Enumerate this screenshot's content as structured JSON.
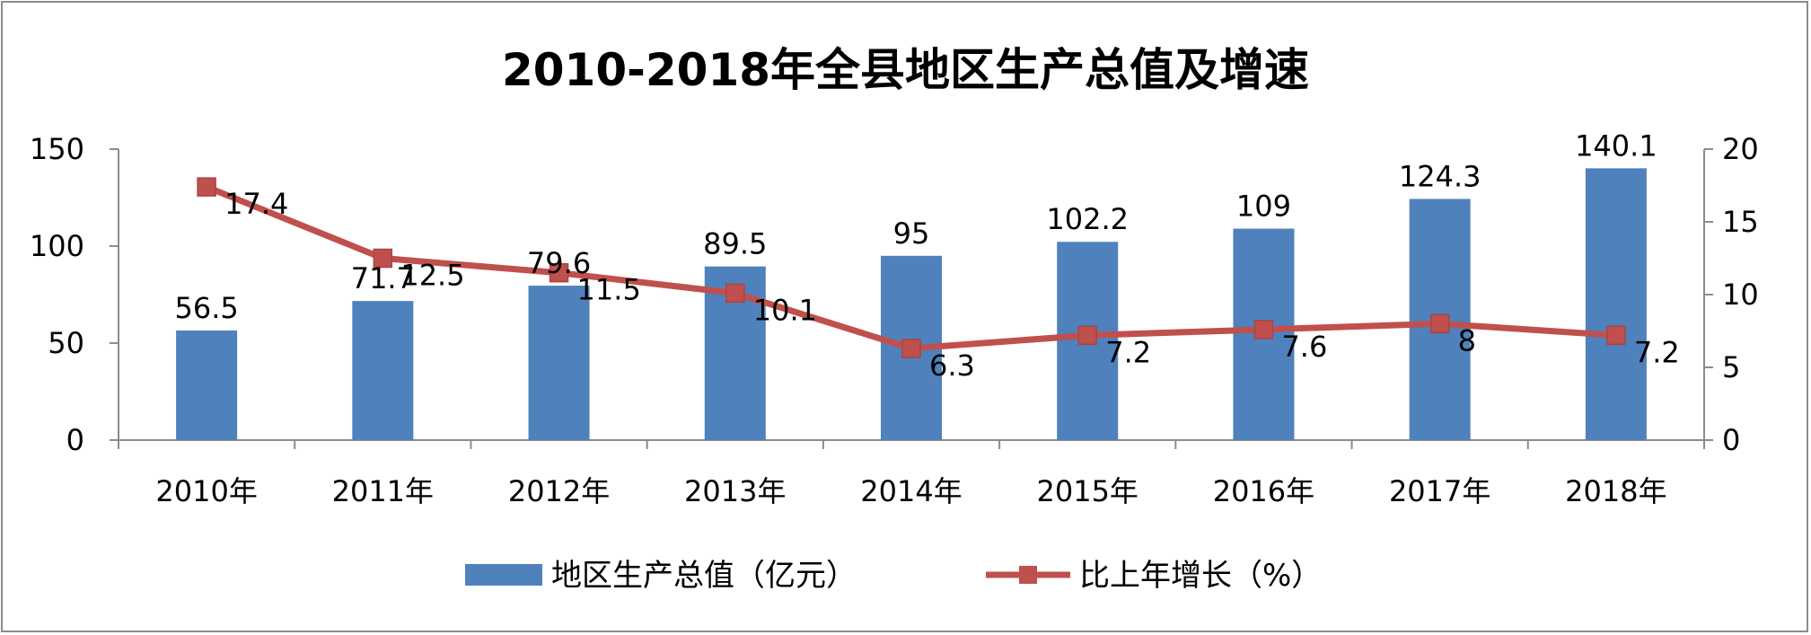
{
  "chart_data": {
    "type": "bar",
    "title": "2010-2018年全县地区生产总值及增速",
    "categories": [
      "2010年",
      "2011年",
      "2012年",
      "2013年",
      "2014年",
      "2015年",
      "2016年",
      "2017年",
      "2018年"
    ],
    "series": [
      {
        "name": "地区生产总值（亿元）",
        "type": "bar",
        "axis": "left",
        "color": "#4f81bd",
        "values": [
          56.5,
          71.7,
          79.6,
          89.5,
          95,
          102.2,
          109,
          124.3,
          140.1
        ]
      },
      {
        "name": "比上年增长（%）",
        "type": "line",
        "axis": "right",
        "color": "#c0504d",
        "marker": "square",
        "values": [
          17.4,
          12.5,
          11.5,
          10.1,
          6.3,
          7.2,
          7.6,
          8,
          7.2
        ]
      }
    ],
    "y_left": {
      "min": 0,
      "max": 150,
      "ticks": [
        0,
        50,
        100,
        150
      ]
    },
    "y_right": {
      "min": 0,
      "max": 20,
      "ticks": [
        0,
        5,
        10,
        15,
        20
      ]
    },
    "grid": false,
    "legend_position": "bottom"
  }
}
